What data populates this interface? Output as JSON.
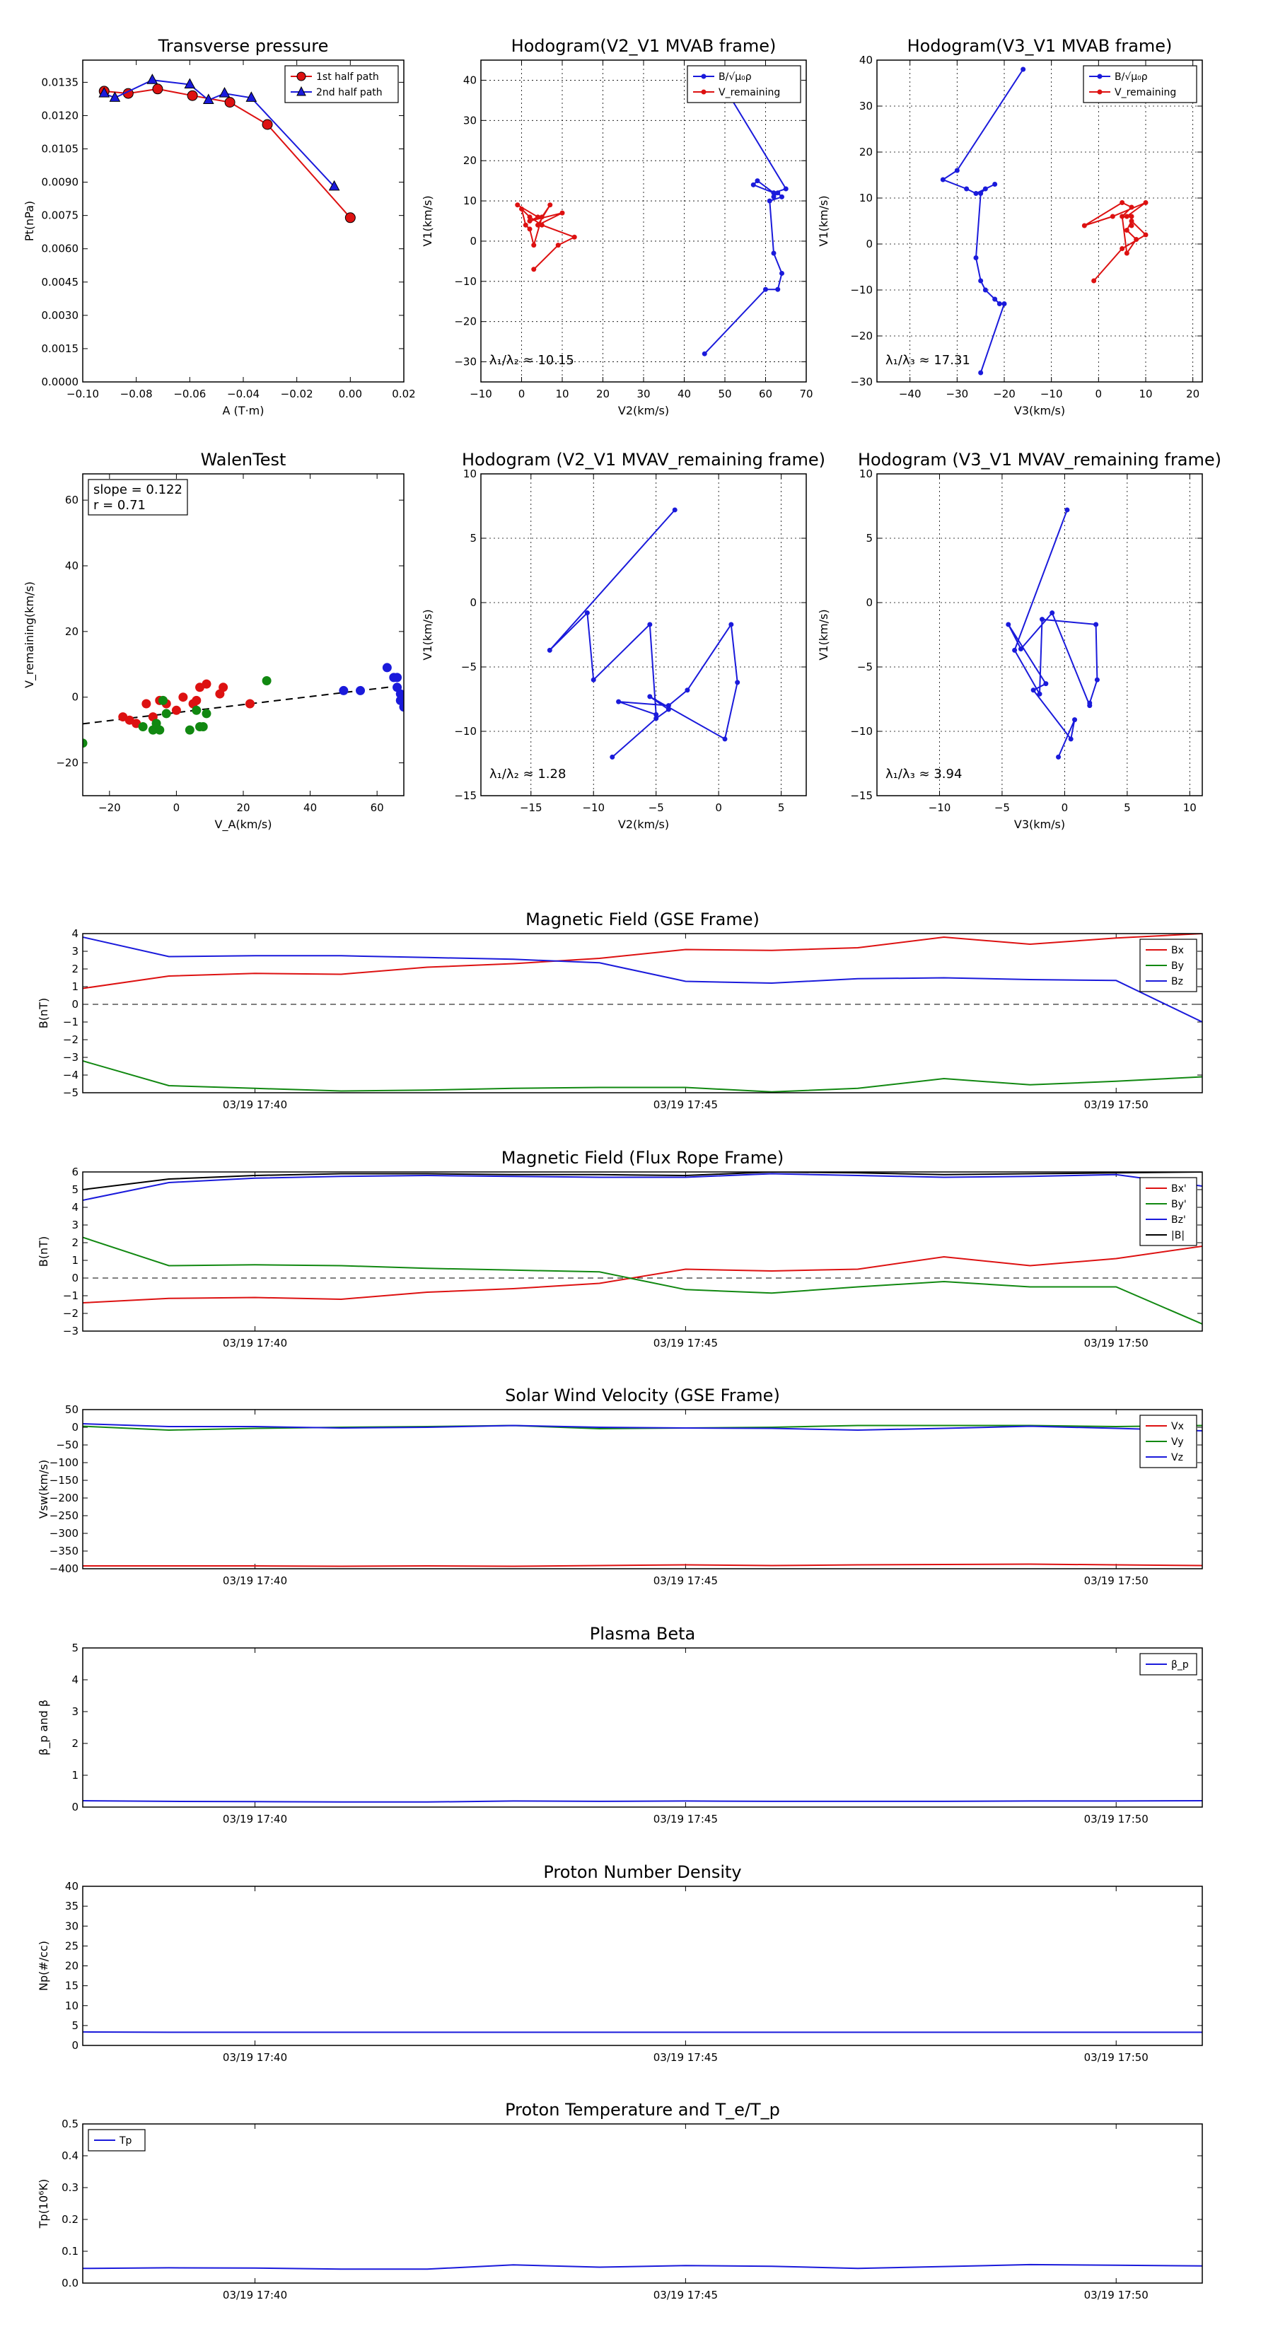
{
  "chart_data": [
    {
      "id": "tp",
      "type": "line",
      "title": "Transverse pressure",
      "xlabel": "A (T·m)",
      "ylabel": "Pt(nPa)",
      "xlim": [
        -0.1,
        0.02
      ],
      "ylim": [
        0.0,
        0.0145
      ],
      "xticks": [
        -0.1,
        -0.08,
        -0.06,
        -0.04,
        -0.02,
        0.0,
        0.02
      ],
      "xticklabels": [
        "−0.10",
        "−0.08",
        "−0.06",
        "−0.04",
        "−0.02",
        "0.00",
        "0.02"
      ],
      "yticks": [
        0,
        0.0015,
        0.003,
        0.0045,
        0.006,
        0.0075,
        0.009,
        0.0105,
        0.012,
        0.0135
      ],
      "yticklabels": [
        "0.0000",
        "0.0015",
        "0.0030",
        "0.0045",
        "0.0060",
        "0.0075",
        "0.0090",
        "0.0105",
        "0.0120",
        "0.0135"
      ],
      "grid": false,
      "legend": "top-right",
      "series": [
        {
          "name": "1st half path",
          "color": "#dd1111",
          "marker": "circle",
          "x": [
            0.0,
            -0.031,
            -0.045,
            -0.059,
            -0.072,
            -0.083,
            -0.092
          ],
          "y": [
            0.0074,
            0.0116,
            0.0126,
            0.0129,
            0.0132,
            0.013,
            0.0131
          ]
        },
        {
          "name": "2nd half path",
          "color": "#1a1adb",
          "marker": "triangle",
          "x": [
            -0.092,
            -0.088,
            -0.074,
            -0.06,
            -0.053,
            -0.047,
            -0.037,
            -0.006
          ],
          "y": [
            0.013,
            0.0128,
            0.0136,
            0.0134,
            0.0127,
            0.013,
            0.0128,
            0.0088
          ]
        }
      ]
    },
    {
      "id": "h1",
      "type": "line",
      "title": "Hodogram(V2_V1 MVAB frame)",
      "xlabel": "V2(km/s)",
      "ylabel": "V1(km/s)",
      "xlim": [
        -10,
        70
      ],
      "ylim": [
        -35,
        45
      ],
      "xticks": [
        -10,
        0,
        10,
        20,
        30,
        40,
        50,
        60,
        70
      ],
      "yticks": [
        -30,
        -20,
        -10,
        0,
        10,
        20,
        30,
        40
      ],
      "grid": true,
      "legend": "top-right",
      "annotation": "λ₁/λ₂ ≈ 10.15",
      "series": [
        {
          "name": "B/√μ₀ρ",
          "color": "#1a1adb",
          "x": [
            45,
            60,
            63,
            64,
            62,
            61,
            64,
            63,
            62,
            62,
            57,
            58,
            62,
            65,
            50
          ],
          "y": [
            -28,
            -12,
            -12,
            -8,
            -3,
            10,
            11,
            12,
            11,
            12,
            14,
            15,
            12,
            13,
            38
          ]
        },
        {
          "name": "V_remaining",
          "color": "#dd1111",
          "x": [
            3,
            9,
            13,
            5,
            2,
            0,
            1,
            2,
            3,
            5,
            7,
            4,
            10,
            2,
            4,
            -1
          ],
          "y": [
            -7,
            -1,
            1,
            4,
            6,
            8,
            4,
            3,
            -1,
            6,
            9,
            4,
            7,
            5,
            6,
            9
          ]
        }
      ]
    },
    {
      "id": "h2",
      "type": "line",
      "title": "Hodogram(V3_V1 MVAB frame)",
      "xlabel": "V3(km/s)",
      "ylabel": "V1(km/s)",
      "xlim": [
        -47,
        22
      ],
      "ylim": [
        -30,
        40
      ],
      "xticks": [
        -40,
        -30,
        -20,
        -10,
        0,
        10,
        20
      ],
      "yticks": [
        -30,
        -20,
        -10,
        0,
        10,
        20,
        30,
        40
      ],
      "grid": true,
      "legend": "top-right",
      "annotation": "λ₁/λ₃ ≈ 17.31",
      "series": [
        {
          "name": "B/√μ₀ρ",
          "color": "#1a1adb",
          "x": [
            -25,
            -20,
            -21,
            -22,
            -24,
            -25,
            -26,
            -25,
            -24,
            -22,
            -26,
            -28,
            -33,
            -30,
            -16
          ],
          "y": [
            -28,
            -13,
            -13,
            -12,
            -10,
            -8,
            -3,
            11,
            12,
            13,
            11,
            12,
            14,
            16,
            38
          ]
        },
        {
          "name": "V_remaining",
          "color": "#dd1111",
          "x": [
            -1,
            5,
            10,
            7,
            6,
            8,
            6,
            5,
            7,
            5,
            -3,
            3,
            10,
            6,
            7,
            7
          ],
          "y": [
            -8,
            -1,
            2,
            5,
            3,
            1,
            -2,
            6,
            8,
            9,
            4,
            6,
            9,
            6,
            6,
            4
          ]
        }
      ]
    },
    {
      "id": "walen",
      "type": "scatter",
      "title": "WalenTest",
      "xlabel": "V_A(km/s)",
      "ylabel": "V_remaining(km/s)",
      "xlim": [
        -28,
        68
      ],
      "ylim": [
        -30,
        68
      ],
      "xticks": [
        -20,
        0,
        20,
        40,
        60
      ],
      "yticks": [
        -20,
        0,
        20,
        40,
        60
      ],
      "grid": false,
      "annotation_lines": [
        "slope = 0.122",
        "r = 0.71"
      ],
      "fit": {
        "slope": 0.122,
        "intercept": -4.7
      },
      "series": [
        {
          "name": "",
          "color": "#dd1111",
          "x": [
            -16,
            -14,
            -12,
            -9,
            -7,
            -5,
            -3,
            0,
            2,
            5,
            7,
            9,
            6,
            13,
            14,
            22
          ],
          "y": [
            -6,
            -7,
            -8,
            -2,
            -6,
            -1,
            -2,
            -4,
            0,
            -2,
            3,
            4,
            -1,
            1,
            3,
            -2
          ]
        },
        {
          "name": "",
          "color": "#118811",
          "x": [
            -28,
            -10,
            -7,
            -6,
            -5,
            -4,
            -3,
            4,
            6,
            7,
            8,
            9,
            27
          ],
          "y": [
            -14,
            -9,
            -10,
            -8,
            -10,
            -1,
            -5,
            -10,
            -4,
            -9,
            -9,
            -5,
            5
          ]
        },
        {
          "name": "",
          "color": "#1a1adb",
          "x": [
            50,
            55,
            63,
            65,
            66,
            67,
            67,
            66,
            68
          ],
          "y": [
            2,
            2,
            9,
            6,
            3,
            1,
            -1,
            6,
            -3
          ]
        }
      ]
    },
    {
      "id": "h3",
      "type": "line",
      "title": "Hodogram (V2_V1 MVAV_remaining frame)",
      "xlabel": "V2(km/s)",
      "ylabel": "V1(km/s)",
      "xlim": [
        -19,
        7
      ],
      "ylim": [
        -15,
        10
      ],
      "xticks": [
        -15,
        -10,
        -5,
        0,
        5
      ],
      "yticks": [
        -15,
        -10,
        -5,
        0,
        5,
        10
      ],
      "grid": true,
      "annotation": "λ₁/λ₂ ≈ 1.28",
      "series": [
        {
          "name": "",
          "color": "#1a1adb",
          "x": [
            -3.5,
            -13.5,
            -10.5,
            -10,
            -5.5,
            -5,
            -8,
            -4,
            -2.5,
            1,
            1.5,
            0.5,
            -5.5,
            -4,
            -5,
            -8.5
          ],
          "y": [
            7.2,
            -3.7,
            -0.8,
            -6,
            -1.7,
            -8.7,
            -7.7,
            -8,
            -6.8,
            -1.7,
            -6.2,
            -10.6,
            -7.3,
            -8.3,
            -9,
            -12
          ]
        }
      ]
    },
    {
      "id": "h4",
      "type": "line",
      "title": "Hodogram (V3_V1 MVAV_remaining frame)",
      "xlabel": "V3(km/s)",
      "ylabel": "V1(km/s)",
      "xlim": [
        -15,
        11
      ],
      "ylim": [
        -15,
        10
      ],
      "xticks": [
        -10,
        -5,
        0,
        5,
        10
      ],
      "yticks": [
        -15,
        -10,
        -5,
        0,
        5,
        10
      ],
      "grid": true,
      "annotation": "λ₁/λ₃ ≈ 3.94",
      "series": [
        {
          "name": "",
          "color": "#1a1adb",
          "x": [
            0.2,
            -4,
            -2,
            -1.8,
            2.5,
            2.6,
            2,
            2,
            -1,
            -3.5,
            -4.5,
            -1.5,
            -2.5,
            0.5,
            0.8,
            -0.5
          ],
          "y": [
            7.2,
            -3.7,
            -7.1,
            -1.3,
            -1.7,
            -6,
            -7.8,
            -8,
            -0.8,
            -3.6,
            -1.7,
            -6.3,
            -6.8,
            -10.6,
            -9.1,
            -12
          ]
        }
      ]
    },
    {
      "id": "bgse",
      "type": "line",
      "title": "Magnetic Field (GSE Frame)",
      "ylabel": "B(nT)",
      "xlim": [
        0,
        13
      ],
      "ylim": [
        -5,
        4
      ],
      "yticks": [
        -5,
        -4,
        -3,
        -2,
        -1,
        0,
        1,
        2,
        3,
        4
      ],
      "xticks": [
        2,
        7,
        12
      ],
      "xticklabels": [
        "03/19 17:40",
        "03/19 17:45",
        "03/19 17:50"
      ],
      "zero_line": true,
      "legend": "top-right",
      "x": [
        0,
        1,
        2,
        3,
        4,
        5,
        6,
        7,
        8,
        9,
        10,
        11,
        12,
        13
      ],
      "series": [
        {
          "name": "Bx",
          "color": "#dd1111",
          "values": [
            0.9,
            1.6,
            1.75,
            1.7,
            2.1,
            2.3,
            2.6,
            3.1,
            3.05,
            3.2,
            3.8,
            3.4,
            3.75,
            4.0
          ]
        },
        {
          "name": "By",
          "color": "#118811",
          "values": [
            -3.2,
            -4.6,
            -4.75,
            -4.9,
            -4.85,
            -4.75,
            -4.7,
            -4.7,
            -4.95,
            -4.75,
            -4.2,
            -4.55,
            -4.35,
            -4.1
          ]
        },
        {
          "name": "Bz",
          "color": "#1a1adb",
          "values": [
            3.8,
            2.7,
            2.75,
            2.75,
            2.65,
            2.55,
            2.35,
            1.3,
            1.2,
            1.45,
            1.5,
            1.4,
            1.35,
            -1.0
          ]
        }
      ]
    },
    {
      "id": "bfr",
      "type": "line",
      "title": "Magnetic Field (Flux Rope Frame)",
      "ylabel": "B(nT)",
      "xlim": [
        0,
        13
      ],
      "ylim": [
        -3,
        6
      ],
      "yticks": [
        -3,
        -2,
        -1,
        0,
        1,
        2,
        3,
        4,
        5,
        6
      ],
      "xticks": [
        2,
        7,
        12
      ],
      "xticklabels": [
        "03/19 17:40",
        "03/19 17:45",
        "03/19 17:50"
      ],
      "zero_line": true,
      "legend": "top-right",
      "x": [
        0,
        1,
        2,
        3,
        4,
        5,
        6,
        7,
        8,
        9,
        10,
        11,
        12,
        13
      ],
      "series": [
        {
          "name": "Bx'",
          "color": "#dd1111",
          "values": [
            -1.4,
            -1.15,
            -1.1,
            -1.2,
            -0.8,
            -0.6,
            -0.3,
            0.5,
            0.4,
            0.5,
            1.2,
            0.7,
            1.1,
            1.8
          ]
        },
        {
          "name": "By'",
          "color": "#118811",
          "values": [
            2.3,
            0.7,
            0.75,
            0.7,
            0.55,
            0.45,
            0.35,
            -0.65,
            -0.85,
            -0.5,
            -0.2,
            -0.5,
            -0.5,
            -2.6
          ]
        },
        {
          "name": "Bz'",
          "color": "#1a1adb",
          "values": [
            4.4,
            5.4,
            5.65,
            5.75,
            5.8,
            5.75,
            5.7,
            5.7,
            5.9,
            5.8,
            5.7,
            5.75,
            5.85,
            5.2
          ]
        },
        {
          "name": "|B|",
          "color": "#000000",
          "values": [
            5.0,
            5.6,
            5.8,
            5.9,
            5.9,
            5.85,
            5.85,
            5.8,
            6.0,
            5.95,
            5.85,
            5.9,
            5.95,
            6.0
          ]
        }
      ]
    },
    {
      "id": "vsw",
      "type": "line",
      "title": "Solar Wind Velocity (GSE Frame)",
      "ylabel": "Vsw(km/s)",
      "xlim": [
        0,
        13
      ],
      "ylim": [
        -400,
        50
      ],
      "yticks": [
        -400,
        -350,
        -300,
        -250,
        -200,
        -150,
        -100,
        -50,
        0,
        50
      ],
      "xticks": [
        2,
        7,
        12
      ],
      "xticklabels": [
        "03/19 17:40",
        "03/19 17:45",
        "03/19 17:50"
      ],
      "legend": "top-right",
      "x": [
        0,
        1,
        2,
        3,
        4,
        5,
        6,
        7,
        8,
        9,
        10,
        11,
        12,
        13
      ],
      "series": [
        {
          "name": "Vx",
          "color": "#dd1111",
          "values": [
            -392,
            -392,
            -392,
            -393,
            -392,
            -393,
            -391,
            -389,
            -391,
            -389,
            -388,
            -387,
            -389,
            -391
          ]
        },
        {
          "name": "Vy",
          "color": "#118811",
          "values": [
            3,
            -8,
            -3,
            0,
            2,
            5,
            -4,
            -2,
            0,
            5,
            5,
            5,
            2,
            5
          ]
        },
        {
          "name": "Vz",
          "color": "#1a1adb",
          "values": [
            10,
            2,
            2,
            -2,
            0,
            5,
            0,
            -2,
            -3,
            -8,
            -3,
            3,
            -3,
            -10
          ]
        }
      ]
    },
    {
      "id": "beta",
      "type": "line",
      "title": "Plasma Beta",
      "ylabel": "β_p and β",
      "xlim": [
        0,
        13
      ],
      "ylim": [
        0,
        5
      ],
      "yticks": [
        0,
        1,
        2,
        3,
        4,
        5
      ],
      "xticks": [
        2,
        7,
        12
      ],
      "xticklabels": [
        "03/19 17:40",
        "03/19 17:45",
        "03/19 17:50"
      ],
      "legend": "top-right",
      "x": [
        0,
        1,
        2,
        3,
        4,
        5,
        6,
        7,
        8,
        9,
        10,
        11,
        12,
        13
      ],
      "series": [
        {
          "name": "β_p",
          "color": "#1a1adb",
          "values": [
            0.2,
            0.18,
            0.17,
            0.16,
            0.16,
            0.19,
            0.18,
            0.19,
            0.18,
            0.18,
            0.18,
            0.19,
            0.19,
            0.2
          ]
        }
      ]
    },
    {
      "id": "np",
      "type": "line",
      "title": "Proton Number Density",
      "ylabel": "Np(#/cc)",
      "xlim": [
        0,
        13
      ],
      "ylim": [
        0,
        40
      ],
      "yticks": [
        0,
        5,
        10,
        15,
        20,
        25,
        30,
        35,
        40
      ],
      "xticks": [
        2,
        7,
        12
      ],
      "xticklabels": [
        "03/19 17:40",
        "03/19 17:45",
        "03/19 17:50"
      ],
      "x": [
        0,
        1,
        2,
        3,
        4,
        5,
        6,
        7,
        8,
        9,
        10,
        11,
        12,
        13
      ],
      "series": [
        {
          "name": "",
          "color": "#1a1adb",
          "values": [
            3.4,
            3.3,
            3.3,
            3.3,
            3.3,
            3.3,
            3.3,
            3.3,
            3.3,
            3.3,
            3.3,
            3.3,
            3.3,
            3.3
          ]
        }
      ]
    },
    {
      "id": "tpt",
      "type": "line",
      "title": "Proton Temperature and T_e/T_p",
      "ylabel": "Tp(10⁶K)",
      "xlim": [
        0,
        13
      ],
      "ylim": [
        0,
        0.5
      ],
      "yticks": [
        0.0,
        0.1,
        0.2,
        0.3,
        0.4,
        0.5
      ],
      "yticklabels": [
        "0.0",
        "0.1",
        "0.2",
        "0.3",
        "0.4",
        "0.5"
      ],
      "xticks": [
        2,
        7,
        12
      ],
      "xticklabels": [
        "03/19 17:40",
        "03/19 17:45",
        "03/19 17:50"
      ],
      "legend": "top-left",
      "x": [
        0,
        1,
        2,
        3,
        4,
        5,
        6,
        7,
        8,
        9,
        10,
        11,
        12,
        13
      ],
      "series": [
        {
          "name": "Tp",
          "color": "#1a1adb",
          "values": [
            0.046,
            0.048,
            0.047,
            0.044,
            0.044,
            0.057,
            0.05,
            0.055,
            0.053,
            0.046,
            0.052,
            0.058,
            0.056,
            0.054
          ]
        }
      ]
    }
  ]
}
